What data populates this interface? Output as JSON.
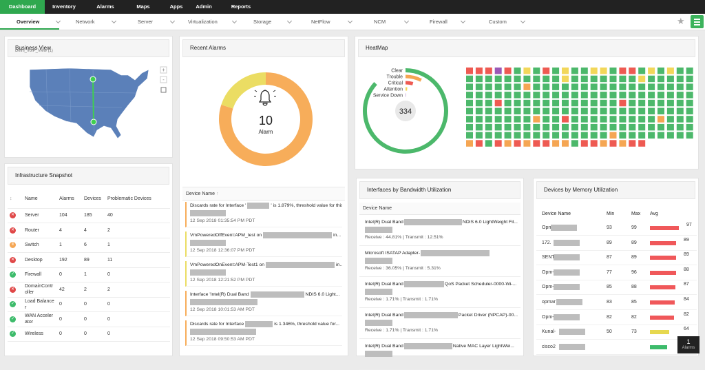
{
  "nav": {
    "tabs": [
      "Dashboard",
      "Inventory",
      "Alarms",
      "Maps",
      "Apps",
      "Admin",
      "Reports"
    ],
    "active": 0
  },
  "subnav": {
    "tabs": [
      "Overview",
      "Network",
      "Server",
      "Virtualization",
      "Storage",
      "NetFlow",
      "NCM",
      "Firewall",
      "Custom"
    ],
    "active": 0
  },
  "business_view": {
    "title": "Business View",
    "subtitle": "Delhi_VoIP_View (1)"
  },
  "infrastructure": {
    "title": "Infrastructure Snapshot",
    "columns": [
      "Name",
      "Alarms",
      "Devices",
      "Problematic Devices"
    ],
    "rows": [
      [
        "Server",
        104,
        185,
        40
      ],
      [
        "Router",
        4,
        4,
        2
      ],
      [
        "Switch",
        1,
        6,
        1
      ],
      [
        "Desktop",
        192,
        89,
        11
      ],
      [
        "Firewall",
        0,
        1,
        0
      ],
      [
        "DomainController",
        42,
        2,
        2
      ],
      [
        "Load Balancer",
        0,
        0,
        0
      ],
      [
        "WAN Accelerator",
        0,
        0,
        0
      ],
      [
        "Wireless",
        0,
        0,
        0
      ]
    ],
    "status": [
      "critical",
      "critical",
      "trouble",
      "critical",
      "clear",
      "critical",
      "clear",
      "clear",
      "clear"
    ]
  },
  "recent_alarms": {
    "title": "Recent Alarms",
    "total": 10,
    "total_label": "Alarm",
    "segments": [
      {
        "value": 8,
        "color": "#f7ad5a"
      },
      {
        "value": 2,
        "color": "#ebdd63"
      }
    ],
    "list_header": "Device Name",
    "items": [
      {
        "text": "Discards rate for Interface '",
        "text_end": "' is 1.879%, threshold value for this...",
        "time": "12 Sep 2018 01:35:54 PM PDT",
        "color": "#f7ad5a"
      },
      {
        "text": "VmPoweredOffEvent:APM_test on",
        "text_end": "in...",
        "time": "12 Sep 2018 12:36:07 PM PDT",
        "color": "#ebdd63"
      },
      {
        "text": "VmPoweredOnEvent:APM-Test1 on",
        "text_end": "in...",
        "time": "12 Sep 2018 12:21:52 PM PDT",
        "color": "#ebdd63"
      },
      {
        "text": "Interface 'Intel(R) Dual Band",
        "text_end": "NDIS 6.0 Light...",
        "time": "12 Sep 2018 10:01:53 AM PDT",
        "color": "#f7ad5a"
      },
      {
        "text": "Discards rate for Interface",
        "text_end": "is 1.346%, threshold value for...",
        "time": "12 Sep 2018 09:50:53 AM PDT",
        "color": "#f7ad5a"
      }
    ]
  },
  "heatmap": {
    "title": "HeatMap",
    "total": 334,
    "statuses": [
      {
        "name": "Clear",
        "count": 290,
        "color": "#4cb86b"
      },
      {
        "name": "Trouble",
        "count": 25,
        "color": "#f5a653"
      },
      {
        "name": "Critical",
        "count": 14,
        "color": "#ee5a52"
      },
      {
        "name": "Attention",
        "count": 4,
        "color": "#f2d75a"
      },
      {
        "name": "Service Down",
        "count": 1,
        "color": "#9b59b6"
      }
    ],
    "rows": [
      [
        2,
        2,
        2,
        4,
        2,
        0,
        3,
        0,
        2,
        0,
        3,
        0,
        0,
        3,
        3,
        0,
        2,
        2,
        0,
        3,
        0,
        3,
        0,
        0
      ],
      [
        0,
        0,
        0,
        0,
        0,
        0,
        0,
        0,
        0,
        0,
        3,
        0,
        0,
        0,
        0,
        0,
        0,
        0,
        3,
        0,
        0,
        0,
        0,
        0
      ],
      [
        0,
        0,
        0,
        0,
        0,
        0,
        1,
        0,
        0,
        0,
        0,
        0,
        0,
        0,
        0,
        0,
        0,
        0,
        0,
        0,
        0,
        0,
        0,
        0
      ],
      [
        0,
        0,
        0,
        0,
        0,
        0,
        0,
        0,
        0,
        0,
        0,
        0,
        0,
        0,
        0,
        0,
        0,
        0,
        0,
        0,
        0,
        0,
        0,
        0
      ],
      [
        0,
        0,
        0,
        2,
        0,
        0,
        0,
        0,
        0,
        0,
        0,
        0,
        0,
        0,
        0,
        0,
        2,
        0,
        0,
        0,
        0,
        0,
        0,
        0
      ],
      [
        0,
        0,
        0,
        0,
        0,
        0,
        0,
        0,
        0,
        0,
        0,
        0,
        0,
        0,
        0,
        0,
        0,
        0,
        0,
        0,
        0,
        0,
        0,
        0
      ],
      [
        0,
        0,
        0,
        0,
        0,
        0,
        0,
        1,
        0,
        0,
        2,
        0,
        0,
        0,
        0,
        0,
        0,
        0,
        0,
        0,
        1,
        0,
        0,
        0
      ],
      [
        0,
        0,
        0,
        0,
        0,
        0,
        0,
        0,
        0,
        0,
        0,
        0,
        0,
        0,
        0,
        0,
        0,
        0,
        0,
        0,
        0,
        0,
        0,
        0
      ],
      [
        0,
        0,
        0,
        0,
        0,
        0,
        0,
        0,
        0,
        0,
        0,
        0,
        0,
        0,
        0,
        1,
        0,
        0,
        0,
        0,
        0,
        0,
        0,
        0
      ],
      [
        1,
        2,
        0,
        2,
        1,
        2,
        1,
        2,
        2,
        1,
        1,
        0,
        2,
        2,
        1,
        2,
        1,
        2,
        2
      ]
    ]
  },
  "bandwidth": {
    "title": "Interfaces by Bandwidth Utilization",
    "header": "Device Name",
    "items": [
      {
        "name": "Intel(R) Dual Band",
        "name_end": "NDIS 6.0 LightWeight Fil...",
        "stats": "Receive : 44.81% | Transmit : 12.51%"
      },
      {
        "name": "Microsoft ISATAP Adapter-",
        "stats": "Receive : 36.05% | Transmit : 5.31%"
      },
      {
        "name": "Intel(R) Dual Band",
        "name_end": "QoS Packet Scheduler-0000-Wi-...",
        "stats": "Receive : 1.71% | Transmit : 1.71%"
      },
      {
        "name": "Intel(R) Dual Band",
        "name_end": "Packet Driver (NPCAP)-00...",
        "stats": "Receive : 1.71% | Transmit : 1.71%"
      },
      {
        "name": "Intel(R) Dual Band",
        "name_end": "Native MAC Layer LightWei..."
      }
    ]
  },
  "memory": {
    "title": "Devices by Memory Utilization",
    "columns": [
      "Device Name",
      "Min",
      "Max",
      "Avg"
    ],
    "xlim": [
      0,
      100
    ],
    "rows": [
      {
        "name": "Opm",
        "min": 93,
        "max": 99,
        "avg": 97,
        "color": "#f0585a"
      },
      {
        "name": "172.",
        "min": 89,
        "max": 89,
        "avg": 89,
        "color": "#f0585a"
      },
      {
        "name": "SENT",
        "min": 87,
        "max": 89,
        "avg": 89,
        "color": "#f0585a"
      },
      {
        "name": "Opm-",
        "min": 77,
        "max": 96,
        "avg": 88,
        "color": "#f0585a"
      },
      {
        "name": "Opm-",
        "min": 85,
        "max": 88,
        "avg": 87,
        "color": "#f0585a"
      },
      {
        "name": "opmar",
        "min": 83,
        "max": 85,
        "avg": 84,
        "color": "#f0585a"
      },
      {
        "name": "Opm-",
        "min": 82,
        "max": 82,
        "avg": 82,
        "color": "#f0585a"
      },
      {
        "name": "Kunal-",
        "min": 50,
        "max": 73,
        "avg": 64,
        "color": "#e6d84f"
      },
      {
        "name": "cisco2",
        "avg": 58,
        "color": "#3dbb6b"
      }
    ]
  },
  "alarm_badge": {
    "count": 1,
    "label": "Alarms"
  }
}
